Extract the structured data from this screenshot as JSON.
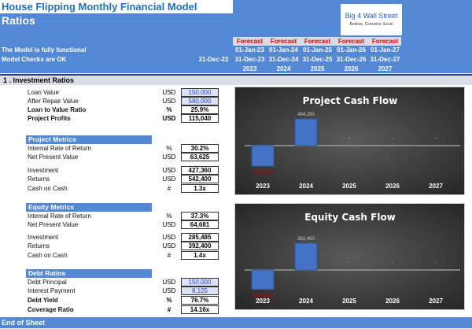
{
  "header": {
    "title": "House Flipping Monthly Financial Model",
    "subtitle": "Ratios",
    "status1": "The Model is fully functional",
    "status2": "Model Checks are OK",
    "logo": {
      "name": "Big 4 Wall Street",
      "tagline": "Believe, Conceive, Excel"
    },
    "opening_date": "31-Dec-22",
    "columns": [
      {
        "label": "Forecast",
        "start": "01-Jan-23",
        "end": "31-Dec-23",
        "year": "2023"
      },
      {
        "label": "Forecast",
        "start": "01-Jan-24",
        "end": "31-Dec-24",
        "year": "2024"
      },
      {
        "label": "Forecast",
        "start": "01-Jan-25",
        "end": "31-Dec-25",
        "year": "2025"
      },
      {
        "label": "Forecast",
        "start": "01-Jan-26",
        "end": "31-Dec-26",
        "year": "2026"
      },
      {
        "label": "Forecast",
        "start": "01-Jan-27",
        "end": "31-Dec-27",
        "year": "2027"
      }
    ]
  },
  "section": "1 . Investment Ratios",
  "investment": [
    {
      "label": "Loan Value",
      "unit": "USD",
      "value": "150,000",
      "input": true
    },
    {
      "label": "After Repair Value",
      "unit": "USD",
      "value": "580,000",
      "input": true
    },
    {
      "label": "Loan to Value Ratio",
      "unit": "%",
      "value": "25.9%",
      "bold": true
    },
    {
      "label": "Project Profits",
      "unit": "USD",
      "value": "115,040",
      "bold": true
    }
  ],
  "project_metrics": {
    "title": "Project Metrics",
    "rows": [
      {
        "label": "Internal Rate of Return",
        "unit": "%",
        "value": "30.2%"
      },
      {
        "label": "Net Present Value",
        "unit": "USD",
        "value": "63,625"
      },
      {
        "label": "Investment",
        "unit": "USD",
        "value": "427,360"
      },
      {
        "label": "Returns",
        "unit": "USD",
        "value": "542,400"
      },
      {
        "label": "Cash on Cash",
        "unit": "#",
        "value": "1.3x"
      }
    ]
  },
  "equity_metrics": {
    "title": "Equity Metrics",
    "rows": [
      {
        "label": "Internal Rate of Return",
        "unit": "%",
        "value": "37.3%"
      },
      {
        "label": "Net Present Value",
        "unit": "USD",
        "value": "64,681"
      },
      {
        "label": "Investment",
        "unit": "USD",
        "value": "285,485"
      },
      {
        "label": "Returns",
        "unit": "USD",
        "value": "392,400"
      },
      {
        "label": "Cash on Cash",
        "unit": "#",
        "value": "1.4x"
      }
    ]
  },
  "debt_ratios": {
    "title": "Debt Ratios",
    "rows": [
      {
        "label": "Debt Principal",
        "unit": "USD",
        "value": "150,000",
        "input": true
      },
      {
        "label": "Interest Payment",
        "unit": "USD",
        "value": "8,125",
        "input": true
      },
      {
        "label": "Debt Yield",
        "unit": "%",
        "value": "76.7%",
        "bold": true
      },
      {
        "label": "Coverage Ratio",
        "unit": "#",
        "value": "14.16x",
        "bold": true
      }
    ]
  },
  "footer": "End of Sheet",
  "chart_data": [
    {
      "type": "bar",
      "title": "Project Cash Flow",
      "categories": [
        "2023",
        "2024",
        "2025",
        "2026",
        "2027"
      ],
      "values": [
        -379290,
        494290,
        0,
        0,
        0
      ],
      "data_labels": [
        "(379,290)",
        "494,290",
        "-",
        "-",
        "-"
      ],
      "bar_color": "#4472c4",
      "negative_label_color": "#c00000"
    },
    {
      "type": "bar",
      "title": "Equity Cash Flow",
      "categories": [
        "2023",
        "2024",
        "2025",
        "2026",
        "2027"
      ],
      "values": [
        -285485,
        392400,
        0,
        0,
        0
      ],
      "data_labels": [
        "(285,485)",
        "392,400",
        "-",
        "-",
        "-"
      ],
      "bar_color": "#4472c4",
      "negative_label_color": "#c00000"
    }
  ]
}
